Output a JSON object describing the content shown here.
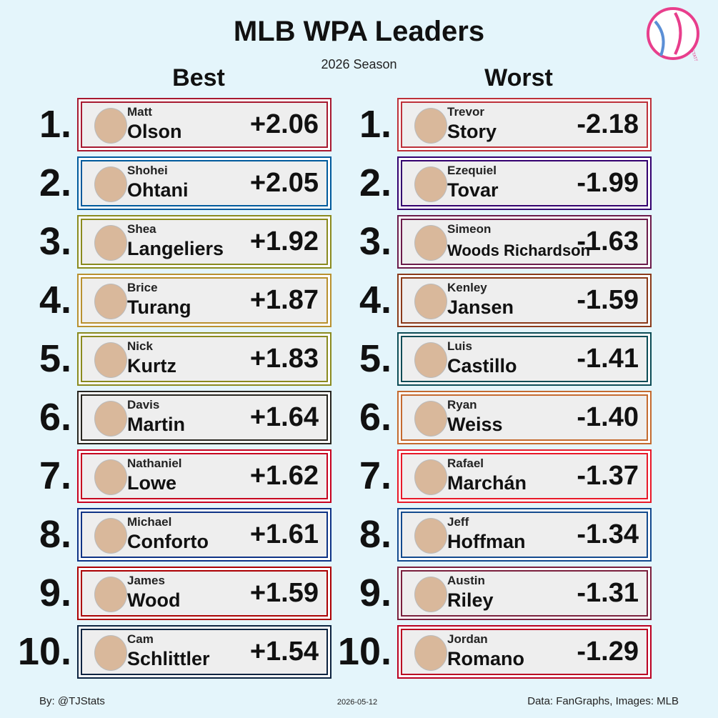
{
  "title": "MLB WPA Leaders",
  "subtitle": "2026 Season",
  "logo_text": "STATS",
  "columns": [
    {
      "heading": "Best",
      "entries": [
        {
          "rank": "1.",
          "first": "Matt",
          "last": "Olson",
          "wpa": "+2.06",
          "color": "#a71930"
        },
        {
          "rank": "2.",
          "first": "Shohei",
          "last": "Ohtani",
          "wpa": "+2.05",
          "color": "#005a9c"
        },
        {
          "rank": "3.",
          "first": "Shea",
          "last": "Langeliers",
          "wpa": "+1.92",
          "color": "#8a8a1e"
        },
        {
          "rank": "4.",
          "first": "Brice",
          "last": "Turang",
          "wpa": "+1.87",
          "color": "#b8912f"
        },
        {
          "rank": "5.",
          "first": "Nick",
          "last": "Kurtz",
          "wpa": "+1.83",
          "color": "#8a8a1e"
        },
        {
          "rank": "6.",
          "first": "Davis",
          "last": "Martin",
          "wpa": "+1.64",
          "color": "#27251f"
        },
        {
          "rank": "7.",
          "first": "Nathaniel",
          "last": "Lowe",
          "wpa": "+1.62",
          "color": "#c6011f"
        },
        {
          "rank": "8.",
          "first": "Michael",
          "last": "Conforto",
          "wpa": "+1.61",
          "color": "#0e3386"
        },
        {
          "rank": "9.",
          "first": "James",
          "last": "Wood",
          "wpa": "+1.59",
          "color": "#ab0003"
        },
        {
          "rank": "10.",
          "first": "Cam",
          "last": "Schlittler",
          "wpa": "+1.54",
          "color": "#0c2340"
        }
      ]
    },
    {
      "heading": "Worst",
      "entries": [
        {
          "rank": "1.",
          "first": "Trevor",
          "last": "Story",
          "wpa": "-2.18",
          "color": "#bd3039"
        },
        {
          "rank": "2.",
          "first": "Ezequiel",
          "last": "Tovar",
          "wpa": "-1.99",
          "color": "#33006f"
        },
        {
          "rank": "3.",
          "first": "Simeon",
          "last": "Woods Richardson",
          "wpa": "-1.63",
          "color": "#6b1b4b"
        },
        {
          "rank": "4.",
          "first": "Kenley",
          "last": "Jansen",
          "wpa": "-1.59",
          "color": "#8a3a1a"
        },
        {
          "rank": "5.",
          "first": "Luis",
          "last": "Castillo",
          "wpa": "-1.41",
          "color": "#0c4c56"
        },
        {
          "rank": "6.",
          "first": "Ryan",
          "last": "Weiss",
          "wpa": "-1.40",
          "color": "#c46a2f"
        },
        {
          "rank": "7.",
          "first": "Rafael",
          "last": "Marchán",
          "wpa": "-1.37",
          "color": "#e81828"
        },
        {
          "rank": "8.",
          "first": "Jeff",
          "last": "Hoffman",
          "wpa": "-1.34",
          "color": "#134a8e"
        },
        {
          "rank": "9.",
          "first": "Austin",
          "last": "Riley",
          "wpa": "-1.31",
          "color": "#7a1f3d"
        },
        {
          "rank": "10.",
          "first": "Jordan",
          "last": "Romano",
          "wpa": "-1.29",
          "color": "#ba0021"
        }
      ]
    }
  ],
  "footer": {
    "author": "By: @TJStats",
    "date": "2026-05-12",
    "source": "Data: FanGraphs, Images: MLB"
  }
}
